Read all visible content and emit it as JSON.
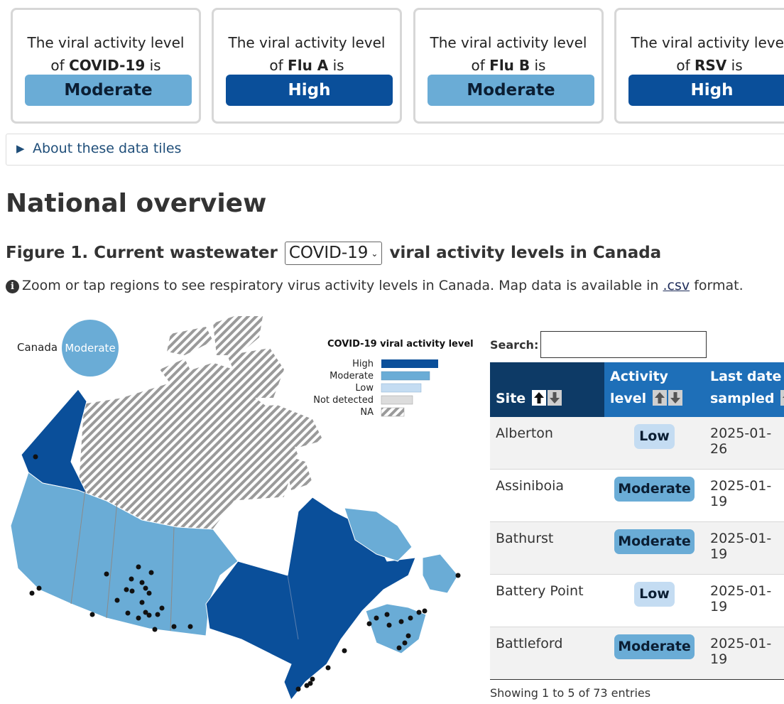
{
  "tiles": [
    {
      "line1": "The viral activity level",
      "of": "of",
      "virus": "COVID-19",
      "is": "is",
      "level": "Moderate"
    },
    {
      "line1": "The viral activity level",
      "of": "of",
      "virus": "Flu A",
      "is": "is",
      "level": "High"
    },
    {
      "line1": "The viral activity level",
      "of": "of",
      "virus": "Flu B",
      "is": "is",
      "level": "Moderate"
    },
    {
      "line1": "The viral activity level",
      "of": "of",
      "virus": "RSV",
      "is": "is",
      "level": "High"
    }
  ],
  "details": {
    "label": "About these data tiles"
  },
  "section_title": "National overview",
  "figure": {
    "prefix": "Figure 1. Current wastewater",
    "selected_virus": "COVID-19",
    "suffix": "viral activity levels in Canada"
  },
  "info": {
    "text": "Zoom or tap regions to see respiratory virus activity levels in Canada. Map data is available in",
    "link": ".csv",
    "end": "format."
  },
  "map": {
    "canada_label": "Canada",
    "canada_level": "Moderate",
    "legend_title": "COVID-19 viral activity level",
    "legend": [
      {
        "label": "High",
        "color": "#0a4f9a"
      },
      {
        "label": "Moderate",
        "color": "#6aacd6"
      },
      {
        "label": "Low",
        "color": "#c4dcf2"
      },
      {
        "label": "Not detected",
        "color": "#dcdcdc"
      },
      {
        "label": "NA",
        "color": "hatched"
      }
    ]
  },
  "table": {
    "search_label": "Search:",
    "search_value": "",
    "headers": {
      "site": "Site",
      "level_line1": "Activity",
      "level_line2": "level",
      "date_line1": "Last date",
      "date_line2": "sampled"
    },
    "rows": [
      {
        "site": "Alberton",
        "level": "Low",
        "date": "2025-01-26"
      },
      {
        "site": "Assiniboia",
        "level": "Moderate",
        "date": "2025-01-19"
      },
      {
        "site": "Bathurst",
        "level": "Moderate",
        "date": "2025-01-19"
      },
      {
        "site": "Battery Point",
        "level": "Low",
        "date": "2025-01-19"
      },
      {
        "site": "Battleford",
        "level": "Moderate",
        "date": "2025-01-19"
      }
    ],
    "info": "Showing 1 to 5 of 73 entries"
  },
  "colors": {
    "high": "#0a4f9a",
    "moderate": "#6aacd6",
    "low": "#c4dcf2",
    "header_dark": "#0d3a66",
    "header": "#1e6fb8"
  }
}
